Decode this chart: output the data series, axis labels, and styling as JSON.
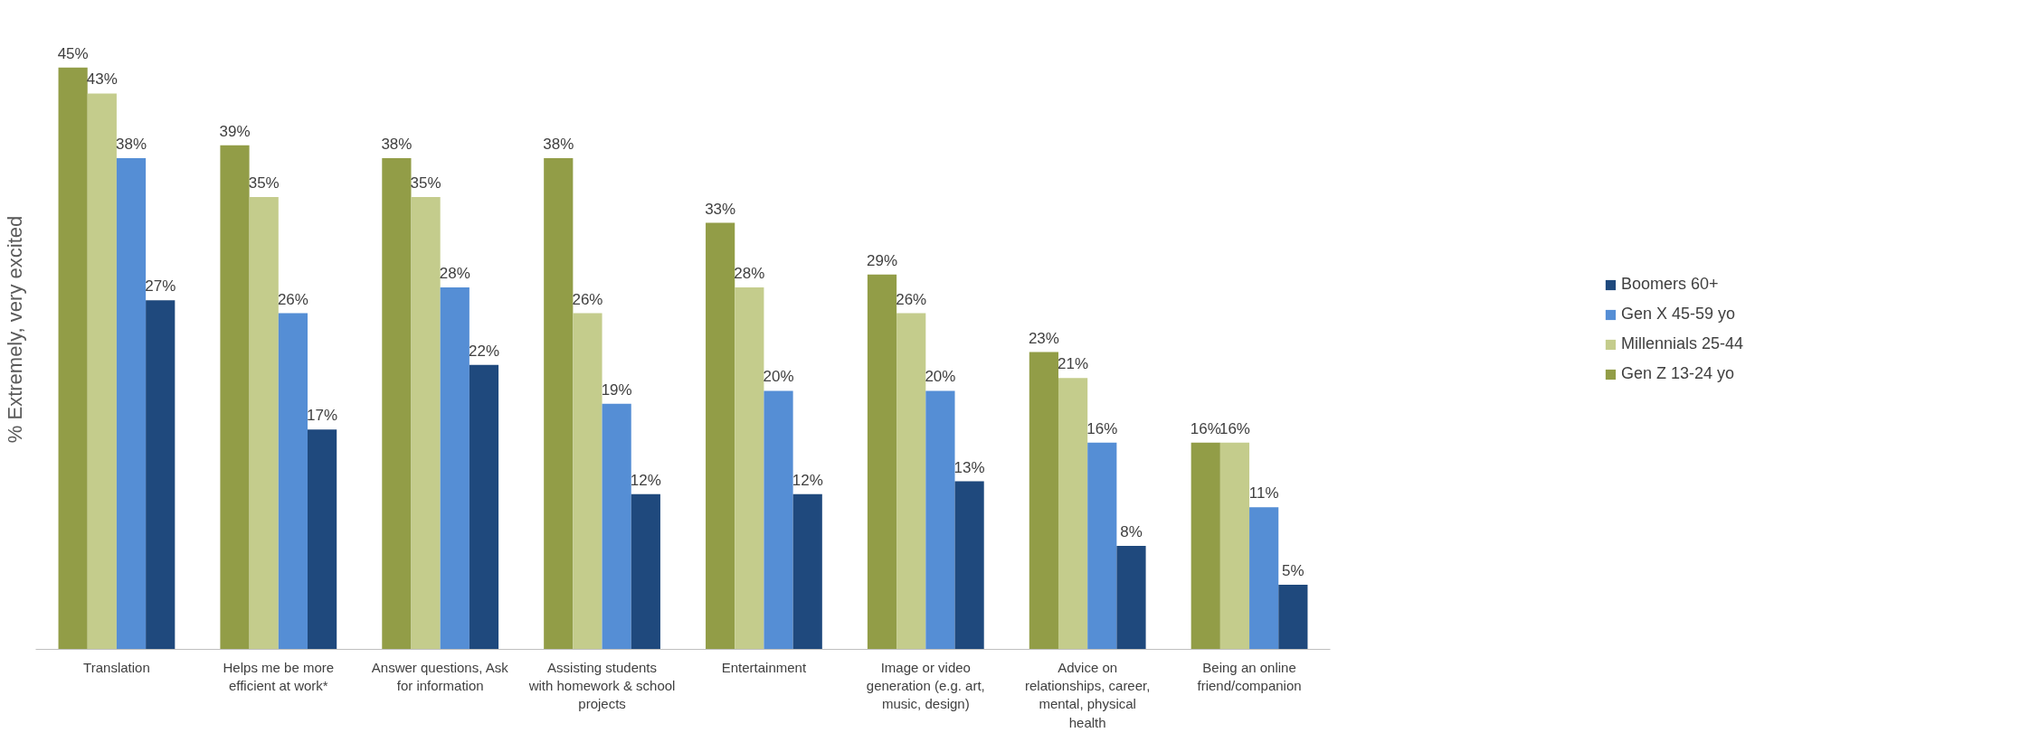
{
  "chart_data": {
    "type": "bar",
    "ylabel": "% Extremely, very excited",
    "categories": [
      "Translation",
      "Helps me be more efficient at work*",
      "Answer questions, Ask for information",
      "Assisting students with homework & school projects",
      "Entertainment",
      "Image or video generation (e.g. art, music, design)",
      "Advice on relationships, career, mental, physical health",
      "Being an online friend/companion"
    ],
    "series": [
      {
        "name": "Gen Z 13-24 yo",
        "color": "#929d47",
        "values": [
          45,
          39,
          38,
          38,
          33,
          29,
          23,
          16
        ],
        "value_labels": [
          "45%",
          "39%",
          "38%",
          "38%",
          "33%",
          "29%",
          "23%",
          "16%"
        ]
      },
      {
        "name": "Millennials 25-44",
        "color": "#c4cc8c",
        "values": [
          43,
          35,
          35,
          26,
          28,
          26,
          21,
          16
        ],
        "value_labels": [
          "43%",
          "35%",
          "35%",
          "26%",
          "28%",
          "26%",
          "21%",
          "16%"
        ]
      },
      {
        "name": "Gen X 45-59 yo",
        "color": "#558ed5",
        "values": [
          38,
          26,
          28,
          19,
          20,
          20,
          16,
          11
        ],
        "value_labels": [
          "38%",
          "26%",
          "28%",
          "19%",
          "20%",
          "20%",
          "16%",
          "11%"
        ]
      },
      {
        "name": "Boomers 60+",
        "color": "#1f497d",
        "values": [
          27,
          17,
          22,
          12,
          12,
          13,
          8,
          5
        ],
        "value_labels": [
          "27%",
          "17%",
          "22%",
          "12%",
          "12%",
          "13%",
          "8%",
          "5%"
        ]
      }
    ],
    "legend": "right",
    "grid": false
  }
}
